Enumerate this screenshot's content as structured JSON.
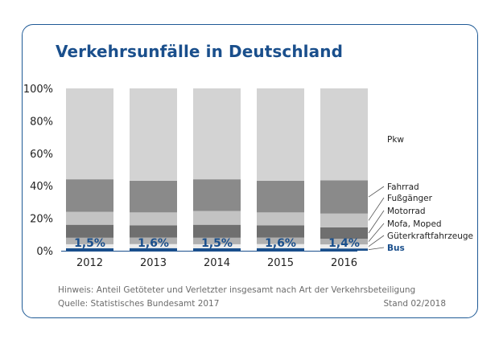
{
  "header": {
    "title": "Verkehrsunfälle in Deutschland"
  },
  "chart_data": {
    "type": "bar",
    "stacked": true,
    "title": "Verkehrsunfälle in Deutschland",
    "categories": [
      "2012",
      "2013",
      "2014",
      "2015",
      "2016"
    ],
    "ylim": [
      0,
      100
    ],
    "yticks": [
      "0%",
      "20%",
      "40%",
      "60%",
      "80%",
      "100%"
    ],
    "series": [
      {
        "name": "Bus",
        "color": "#1a4f8c",
        "values": [
          1.5,
          1.6,
          1.5,
          1.6,
          1.4
        ]
      },
      {
        "name": "Güterkraftfahrzeuge",
        "color": "#ececec",
        "values": [
          2.5,
          2.5,
          2.5,
          2.5,
          2.5
        ]
      },
      {
        "name": "Mofa, Moped",
        "color": "#b0b0b0",
        "values": [
          4,
          4,
          4,
          4,
          3.5
        ]
      },
      {
        "name": "Motorrad",
        "color": "#6f6f6f",
        "values": [
          8,
          7.5,
          8,
          7.5,
          7
        ]
      },
      {
        "name": "Fußgänger",
        "color": "#c3c3c3",
        "values": [
          8,
          8,
          8.5,
          8,
          8.5
        ]
      },
      {
        "name": "Fahrrad",
        "color": "#8a8a8a",
        "values": [
          20,
          19.5,
          19.5,
          19.5,
          20.5
        ]
      },
      {
        "name": "Pkw",
        "color": "#d3d3d3",
        "values": [
          56,
          56.9,
          56,
          56.9,
          56.6
        ]
      }
    ],
    "data_labels": [
      "1,5%",
      "1,6%",
      "1,5%",
      "1,6%",
      "1,4%"
    ],
    "legend": [
      "Pkw",
      "Fahrrad",
      "Fußgänger",
      "Motorrad",
      "Mofa, Moped",
      "Güterkraftfahrzeuge",
      "Bus"
    ]
  },
  "footer": {
    "note": "Hinweis: Anteil Getöteter und Verletzter insgesamt nach Art der Verkehrsbeteiligung",
    "source": "Quelle: Statistisches Bundesamt 2017",
    "stand": "Stand 02/2018"
  }
}
